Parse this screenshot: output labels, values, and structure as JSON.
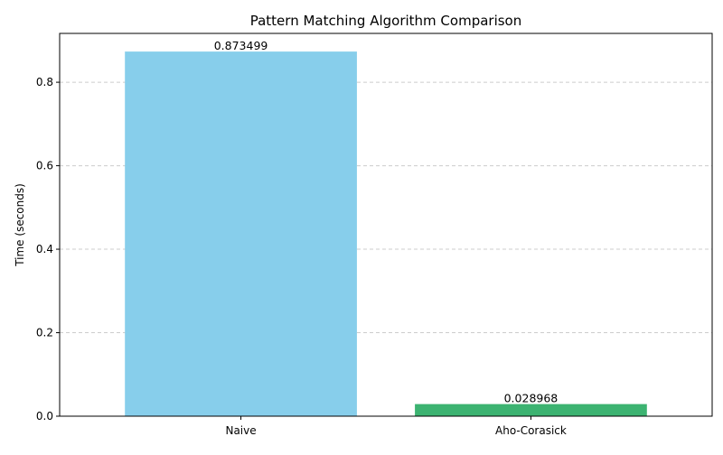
{
  "chart_data": {
    "type": "bar",
    "title": "Pattern Matching Algorithm Comparison",
    "xlabel": "",
    "ylabel": "Time (seconds)",
    "categories": [
      "Naive",
      "Aho-Corasick"
    ],
    "values": [
      0.873499,
      0.028968
    ],
    "data_labels": [
      "0.873499",
      "0.028968"
    ],
    "bar_colors": [
      "#87ceeb",
      "#3cb371"
    ],
    "ylim": [
      0,
      0.917
    ],
    "yticks": [
      0.0,
      0.2,
      0.4,
      0.6,
      0.8
    ],
    "ytick_labels": [
      "0.0",
      "0.2",
      "0.4",
      "0.6",
      "0.8"
    ],
    "grid": {
      "axis": "y",
      "style": "dashed",
      "color": "#cccccc"
    }
  }
}
